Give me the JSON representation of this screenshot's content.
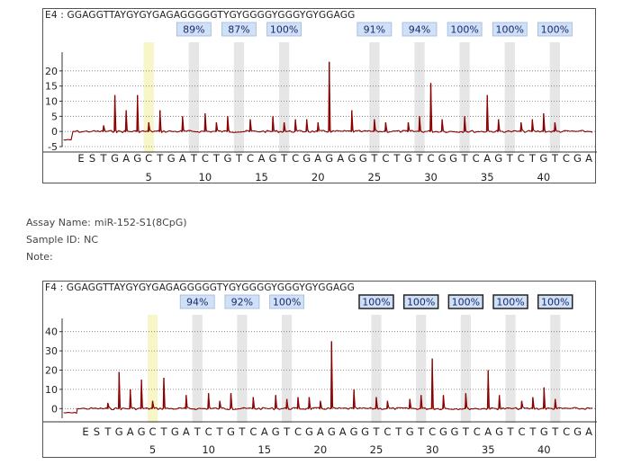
{
  "chart_data": [
    {
      "type": "line",
      "sample": "E4",
      "sequence": "E4 : GGAGGTTAYGYGYGAGAGGGGGTYGYGGGGYGGGYGYGGAGG",
      "methylation_pct": [
        "89%",
        "87%",
        "100%",
        "91%",
        "94%",
        "100%",
        "100%",
        "100%"
      ],
      "methylation_boxed": [
        false,
        false,
        false,
        false,
        false,
        false,
        false,
        false
      ],
      "methylation_values": [
        89,
        87,
        100,
        91,
        94,
        100,
        100,
        100
      ],
      "ylim": [
        -5,
        25
      ],
      "yticks": [
        "-5",
        "0",
        "5",
        "10",
        "15",
        "20"
      ],
      "peaks": [
        0,
        0,
        2,
        12,
        7,
        12,
        3,
        7,
        0,
        5,
        0,
        6,
        3,
        5,
        0,
        4,
        0,
        5,
        3,
        4,
        4,
        3,
        23,
        0,
        7,
        0,
        4,
        3,
        0,
        3,
        5,
        16,
        4,
        0,
        5,
        0,
        12,
        4,
        0,
        3,
        4,
        6,
        3
      ],
      "highlight_index": 6,
      "cpg_indices": [
        10,
        14,
        18,
        26,
        30,
        34,
        38,
        42
      ]
    },
    {
      "type": "line",
      "sample": "F4",
      "sequence": "F4 : GGAGGTTAYGYGYGAGAGGGGGTYGYGGGGYGGGYGYGGAGG",
      "methylation_pct": [
        "94%",
        "92%",
        "100%",
        "100%",
        "100%",
        "100%",
        "100%",
        "100%"
      ],
      "methylation_boxed": [
        false,
        false,
        false,
        true,
        true,
        true,
        true,
        true
      ],
      "methylation_values": [
        94,
        92,
        100,
        100,
        100,
        100,
        100,
        100
      ],
      "ylim": [
        -5,
        45
      ],
      "yticks": [
        "0",
        "10",
        "20",
        "30",
        "40"
      ],
      "peaks": [
        0,
        0,
        3,
        19,
        10,
        15,
        4,
        16,
        0,
        7,
        0,
        8,
        4,
        8,
        0,
        6,
        0,
        7,
        5,
        6,
        6,
        4,
        35,
        0,
        10,
        0,
        6,
        4,
        0,
        5,
        7,
        26,
        7,
        0,
        8,
        0,
        20,
        7,
        0,
        4,
        6,
        11,
        5
      ],
      "highlight_index": 6,
      "cpg_indices": [
        10,
        14,
        18,
        26,
        30,
        34,
        38,
        42
      ]
    }
  ],
  "dispensation": [
    "E",
    "S",
    "T",
    "G",
    "A",
    "G",
    "C",
    "T",
    "G",
    "A",
    "T",
    "C",
    "T",
    "G",
    "T",
    "C",
    "A",
    "G",
    "T",
    "C",
    "G",
    "A",
    "G",
    "A",
    "G",
    "G",
    "T",
    "C",
    "T",
    "G",
    "T",
    "C",
    "G",
    "G",
    "T",
    "C",
    "A",
    "G",
    "T",
    "C",
    "T",
    "G",
    "T",
    "C",
    "G",
    "A"
  ],
  "position_ticks": [
    "5",
    "10",
    "15",
    "20",
    "25",
    "30",
    "35",
    "40"
  ],
  "assay": {
    "name_label": "Assay Name:",
    "name_value": "miR-152-S1(8CpG)",
    "sample_label": "Sample ID:",
    "sample_value": "NC",
    "note_label": "Note:",
    "note_value": ""
  },
  "colors": {
    "trace": "#8b0000",
    "cpg_band": "#e6e6e6",
    "highlight_band": "#f6f6c8",
    "pct_box": "#cfe0f7",
    "pct_text": "#1a2a6c"
  }
}
